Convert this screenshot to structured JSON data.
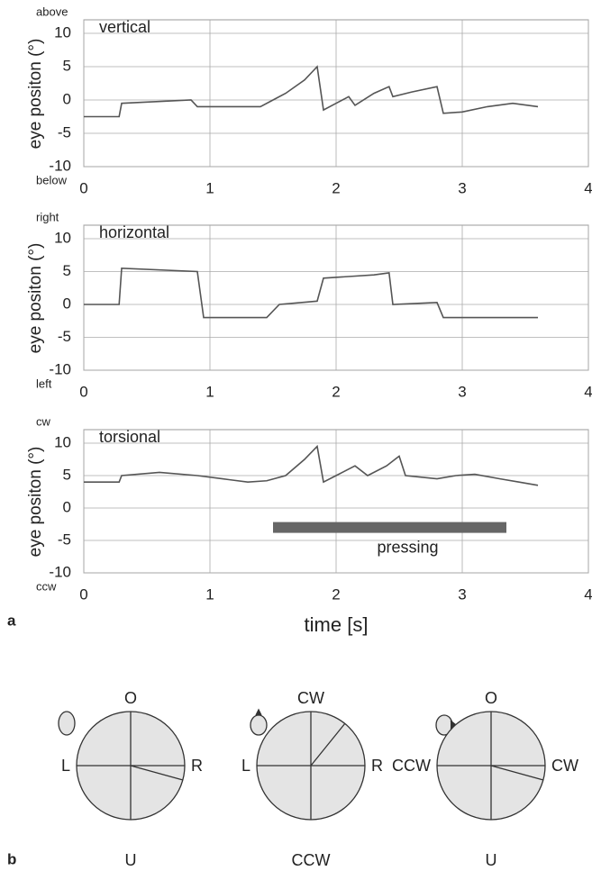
{
  "chart_data": [
    {
      "type": "line",
      "title": "vertical",
      "ylabel": "eye positon (°)",
      "annotations": [
        "above",
        "below"
      ],
      "color": "#555555",
      "grid": true,
      "x": [
        0,
        0.28,
        0.3,
        0.85,
        0.9,
        1.4,
        1.5,
        1.6,
        1.75,
        1.85,
        1.9,
        2.0,
        2.1,
        2.15,
        2.3,
        2.42,
        2.45,
        2.6,
        2.8,
        2.85,
        3.0,
        3.2,
        3.4,
        3.6
      ],
      "values": [
        -2.5,
        -2.5,
        -0.5,
        0,
        -1,
        -1,
        0,
        1,
        3,
        5,
        -1.5,
        -0.5,
        0.5,
        -0.8,
        1,
        2,
        0.5,
        1.2,
        2,
        -2,
        -1.8,
        -1,
        -0.5,
        -1
      ],
      "xlim": [
        0,
        4
      ],
      "xticks": [
        0,
        1,
        2,
        3,
        4
      ],
      "ylim": [
        -10,
        10
      ],
      "yticks": [
        -10,
        -5,
        0,
        5,
        10
      ]
    },
    {
      "type": "line",
      "title": "horizontal",
      "ylabel": "eye positon (°)",
      "annotations": [
        "right",
        "left"
      ],
      "color": "#555555",
      "grid": true,
      "x": [
        0,
        0.28,
        0.3,
        0.9,
        0.95,
        1.45,
        1.55,
        1.85,
        1.9,
        2.3,
        2.42,
        2.45,
        2.8,
        2.85,
        3.6
      ],
      "values": [
        0,
        0,
        5.5,
        5,
        -2,
        -2,
        0,
        0.5,
        4,
        4.5,
        4.8,
        0,
        0.3,
        -2,
        -2
      ],
      "xlim": [
        0,
        4
      ],
      "xticks": [
        0,
        1,
        2,
        3,
        4
      ],
      "ylim": [
        -10,
        10
      ],
      "yticks": [
        -10,
        -5,
        0,
        5,
        10
      ]
    },
    {
      "type": "line",
      "title": "torsional",
      "ylabel": "eye positon (°)",
      "xlabel": "time [s]",
      "annotations": [
        "cw",
        "ccw"
      ],
      "color": "#555555",
      "grid": true,
      "x": [
        0,
        0.28,
        0.3,
        0.6,
        0.9,
        1.1,
        1.3,
        1.45,
        1.6,
        1.75,
        1.85,
        1.9,
        2.0,
        2.15,
        2.25,
        2.4,
        2.5,
        2.55,
        2.8,
        2.95,
        3.1,
        3.3,
        3.45,
        3.6
      ],
      "values": [
        4,
        4,
        5,
        5.5,
        5,
        4.5,
        4,
        4.2,
        5,
        7.5,
        9.5,
        4,
        5,
        6.5,
        5,
        6.5,
        8,
        5,
        4.5,
        5,
        5.2,
        4.5,
        4,
        3.5
      ],
      "pressing": {
        "label": "pressing",
        "x": [
          1.5,
          3.35
        ],
        "y": -3,
        "color": "#666666"
      },
      "xlim": [
        0,
        4
      ],
      "xticks": [
        0,
        1,
        2,
        3,
        4
      ],
      "ylim": [
        -10,
        10
      ],
      "yticks": [
        -10,
        -5,
        0,
        5,
        10
      ]
    }
  ],
  "panel_labels": [
    "a",
    "b"
  ],
  "diagrams": [
    {
      "top": "O",
      "left": "L",
      "right": "R",
      "bottom": "U"
    },
    {
      "top": "CW",
      "left": "L",
      "right": "R",
      "bottom": "CCW"
    },
    {
      "top": "O",
      "left": "CCW",
      "right": "CW",
      "bottom": "U"
    }
  ]
}
